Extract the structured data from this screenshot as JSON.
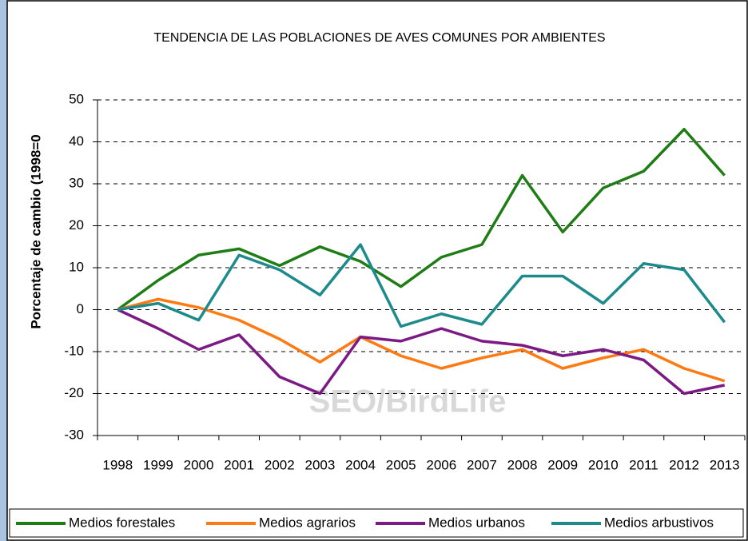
{
  "chart_data": {
    "type": "line",
    "title": "TENDENCIA DE LAS POBLACIONES DE AVES COMUNES POR AMBIENTES",
    "y_label": "Porcentaje de cambio (1998=0",
    "watermark": "SEO/BirdLife",
    "categories": [
      "1998",
      "1999",
      "2000",
      "2001",
      "2002",
      "2003",
      "2004",
      "2005",
      "2006",
      "2007",
      "2008",
      "2009",
      "2010",
      "2011",
      "2012",
      "2013"
    ],
    "series": [
      {
        "name": "Medios forestales",
        "color": "#1e7d14",
        "values": [
          0,
          7,
          13,
          14.5,
          10.5,
          15,
          11.5,
          5.5,
          12.5,
          15.5,
          32,
          18.5,
          29,
          33,
          43,
          32
        ]
      },
      {
        "name": "Medios agrarios",
        "color": "#ff7a12",
        "values": [
          0,
          2.5,
          0.5,
          -2.5,
          -7,
          -12.5,
          -6.5,
          -11,
          -14,
          -11.5,
          -9.5,
          -14,
          -11.5,
          -9.5,
          -14,
          -17
        ]
      },
      {
        "name": "Medios urbanos",
        "color": "#7b1a85",
        "values": [
          0,
          -4.5,
          -9.5,
          -6,
          -16,
          -20,
          -6.5,
          -7.5,
          -4.5,
          -7.5,
          -8.5,
          -11,
          -9.5,
          -12,
          -20,
          -18
        ]
      },
      {
        "name": "Medios arbustivos",
        "color": "#1d8a8c",
        "values": [
          0,
          1.5,
          -2.5,
          13,
          9.5,
          3.5,
          15.5,
          -4,
          -1,
          -3.5,
          8,
          8,
          1.5,
          11,
          9.5,
          -3
        ]
      }
    ],
    "ylim": [
      -30,
      50
    ],
    "yticks": [
      -30,
      -20,
      -10,
      0,
      10,
      20,
      30,
      40,
      50
    ],
    "grid": true,
    "legend": "bottom"
  }
}
